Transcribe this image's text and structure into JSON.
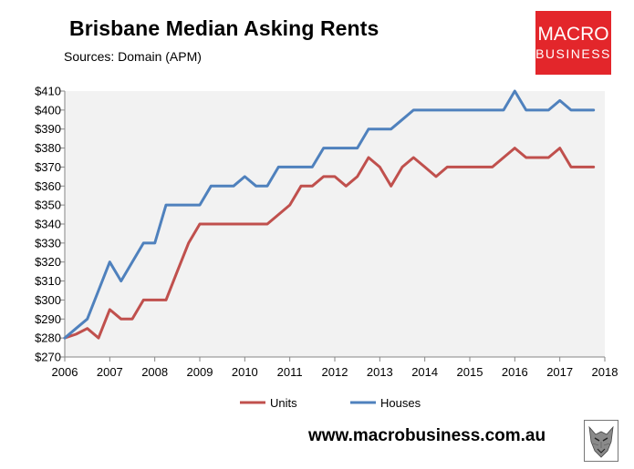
{
  "title": "Brisbane Median Asking Rents",
  "subtitle": "Sources: Domain (APM)",
  "logo": {
    "line1": "MACRO",
    "line2": "BUSINESS",
    "color": "#e3262b"
  },
  "footer": {
    "url": "www.macrobusiness.com.au"
  },
  "chart_data": {
    "type": "line",
    "x_ticks": [
      "2006",
      "2007",
      "2008",
      "2009",
      "2010",
      "2011",
      "2012",
      "2013",
      "2014",
      "2015",
      "2016",
      "2017",
      "2018"
    ],
    "y_ticks": [
      "$270",
      "$280",
      "$290",
      "$300",
      "$310",
      "$320",
      "$330",
      "$340",
      "$350",
      "$360",
      "$370",
      "$380",
      "$390",
      "$400",
      "$410"
    ],
    "xlim": [
      2006,
      2018
    ],
    "ylim": [
      270,
      410
    ],
    "plot_background": "#f2f2f2",
    "grid": false,
    "legend_position": "bottom",
    "series": [
      {
        "name": "Units",
        "color": "#c0504d",
        "points": [
          [
            2006.0,
            280
          ],
          [
            2006.25,
            282
          ],
          [
            2006.5,
            285
          ],
          [
            2006.75,
            280
          ],
          [
            2007.0,
            295
          ],
          [
            2007.25,
            290
          ],
          [
            2007.5,
            290
          ],
          [
            2007.75,
            300
          ],
          [
            2008.0,
            300
          ],
          [
            2008.25,
            300
          ],
          [
            2008.5,
            315
          ],
          [
            2008.75,
            330
          ],
          [
            2009.0,
            340
          ],
          [
            2009.25,
            340
          ],
          [
            2009.5,
            340
          ],
          [
            2009.75,
            340
          ],
          [
            2010.0,
            340
          ],
          [
            2010.25,
            340
          ],
          [
            2010.5,
            340
          ],
          [
            2010.75,
            345
          ],
          [
            2011.0,
            350
          ],
          [
            2011.25,
            360
          ],
          [
            2011.5,
            360
          ],
          [
            2011.75,
            365
          ],
          [
            2012.0,
            365
          ],
          [
            2012.25,
            360
          ],
          [
            2012.5,
            365
          ],
          [
            2012.75,
            375
          ],
          [
            2013.0,
            370
          ],
          [
            2013.25,
            360
          ],
          [
            2013.5,
            370
          ],
          [
            2013.75,
            375
          ],
          [
            2014.0,
            370
          ],
          [
            2014.25,
            365
          ],
          [
            2014.5,
            370
          ],
          [
            2014.75,
            370
          ],
          [
            2015.0,
            370
          ],
          [
            2015.25,
            370
          ],
          [
            2015.5,
            370
          ],
          [
            2015.75,
            375
          ],
          [
            2016.0,
            380
          ],
          [
            2016.25,
            375
          ],
          [
            2016.5,
            375
          ],
          [
            2016.75,
            375
          ],
          [
            2017.0,
            380
          ],
          [
            2017.25,
            370
          ],
          [
            2017.5,
            370
          ],
          [
            2017.75,
            370
          ]
        ]
      },
      {
        "name": "Houses",
        "color": "#4f81bd",
        "points": [
          [
            2006.0,
            280
          ],
          [
            2006.25,
            285
          ],
          [
            2006.5,
            290
          ],
          [
            2006.75,
            305
          ],
          [
            2007.0,
            320
          ],
          [
            2007.25,
            310
          ],
          [
            2007.5,
            320
          ],
          [
            2007.75,
            330
          ],
          [
            2008.0,
            330
          ],
          [
            2008.25,
            350
          ],
          [
            2008.5,
            350
          ],
          [
            2008.75,
            350
          ],
          [
            2009.0,
            350
          ],
          [
            2009.25,
            360
          ],
          [
            2009.5,
            360
          ],
          [
            2009.75,
            360
          ],
          [
            2010.0,
            365
          ],
          [
            2010.25,
            360
          ],
          [
            2010.5,
            360
          ],
          [
            2010.75,
            370
          ],
          [
            2011.0,
            370
          ],
          [
            2011.25,
            370
          ],
          [
            2011.5,
            370
          ],
          [
            2011.75,
            380
          ],
          [
            2012.0,
            380
          ],
          [
            2012.25,
            380
          ],
          [
            2012.5,
            380
          ],
          [
            2012.75,
            390
          ],
          [
            2013.0,
            390
          ],
          [
            2013.25,
            390
          ],
          [
            2013.5,
            395
          ],
          [
            2013.75,
            400
          ],
          [
            2014.0,
            400
          ],
          [
            2014.25,
            400
          ],
          [
            2014.5,
            400
          ],
          [
            2014.75,
            400
          ],
          [
            2015.0,
            400
          ],
          [
            2015.25,
            400
          ],
          [
            2015.5,
            400
          ],
          [
            2015.75,
            400
          ],
          [
            2016.0,
            410
          ],
          [
            2016.25,
            400
          ],
          [
            2016.5,
            400
          ],
          [
            2016.75,
            400
          ],
          [
            2017.0,
            405
          ],
          [
            2017.25,
            400
          ],
          [
            2017.5,
            400
          ],
          [
            2017.75,
            400
          ]
        ]
      }
    ]
  }
}
